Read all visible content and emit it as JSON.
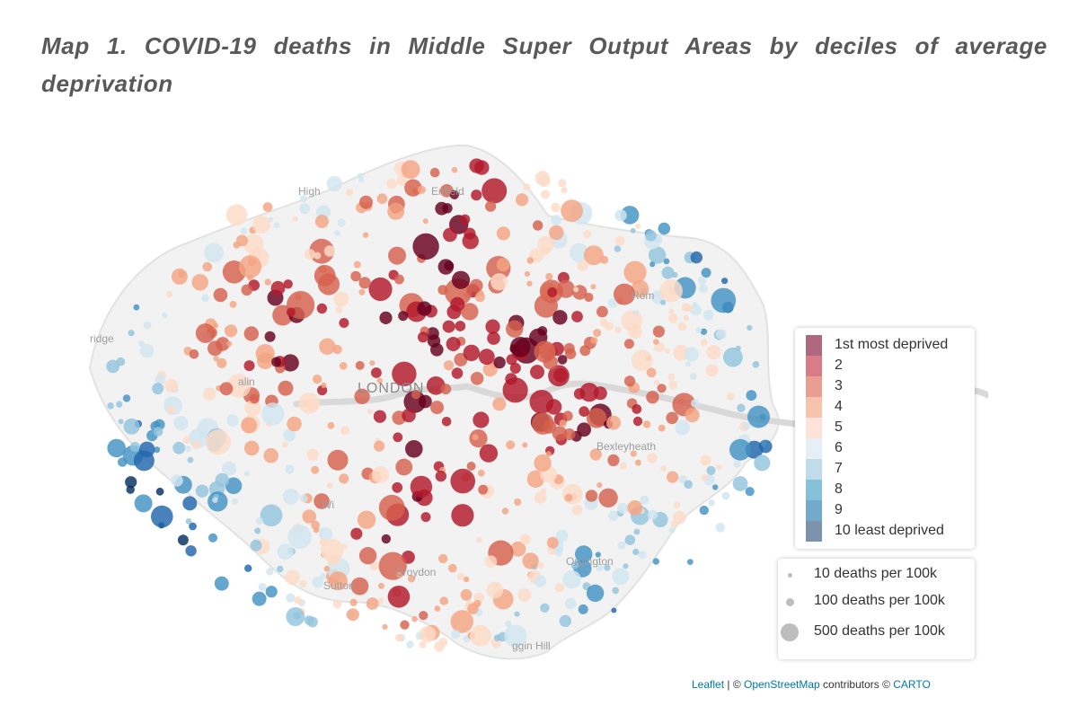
{
  "caption": "Map 1. COVID-19 deaths in Middle Super Output Areas by deciles of average deprivation",
  "place_labels": {
    "high_barnet": "High",
    "enfield": "Enfield",
    "romford": "Rom",
    "uxbridge": "ridge",
    "ealing": "alin",
    "london": "LONDON",
    "bexleyheath": "Bexleyheath",
    "wimbledon": "Wi",
    "croydon": "Croydon",
    "sutton": "Sutton",
    "orpington": "Orpington",
    "biggin_hill": "ggin Hill"
  },
  "legend": {
    "deciles": [
      {
        "label": "1st most deprived",
        "color": "#b0687f"
      },
      {
        "label": "2",
        "color": "#d97b89"
      },
      {
        "label": "3",
        "color": "#ec9d92"
      },
      {
        "label": "4",
        "color": "#f8c3ad"
      },
      {
        "label": "5",
        "color": "#fde3da"
      },
      {
        "label": "6",
        "color": "#e6eef6"
      },
      {
        "label": "7",
        "color": "#c2dbea"
      },
      {
        "label": "8",
        "color": "#86c1dc"
      },
      {
        "label": "9",
        "color": "#73a9cb"
      },
      {
        "label": "10 least deprived",
        "color": "#7d92ad"
      }
    ],
    "sizes": [
      {
        "label": "10 deaths per 100k",
        "value": 10
      },
      {
        "label": "100 deaths per 100k",
        "value": 100
      },
      {
        "label": "500 deaths per 100k",
        "value": 500
      }
    ]
  },
  "point_colors": [
    "#67001f",
    "#b2182b",
    "#d6604d",
    "#f4a582",
    "#fddbc7",
    "#d1e5f0",
    "#92c5de",
    "#4393c3",
    "#2166ac",
    "#053061"
  ],
  "attribution": {
    "leaflet": "Leaflet",
    "sep": " | © ",
    "osm": "OpenStreetMap",
    "contrib": " contributors © ",
    "carto": "CARTO"
  }
}
